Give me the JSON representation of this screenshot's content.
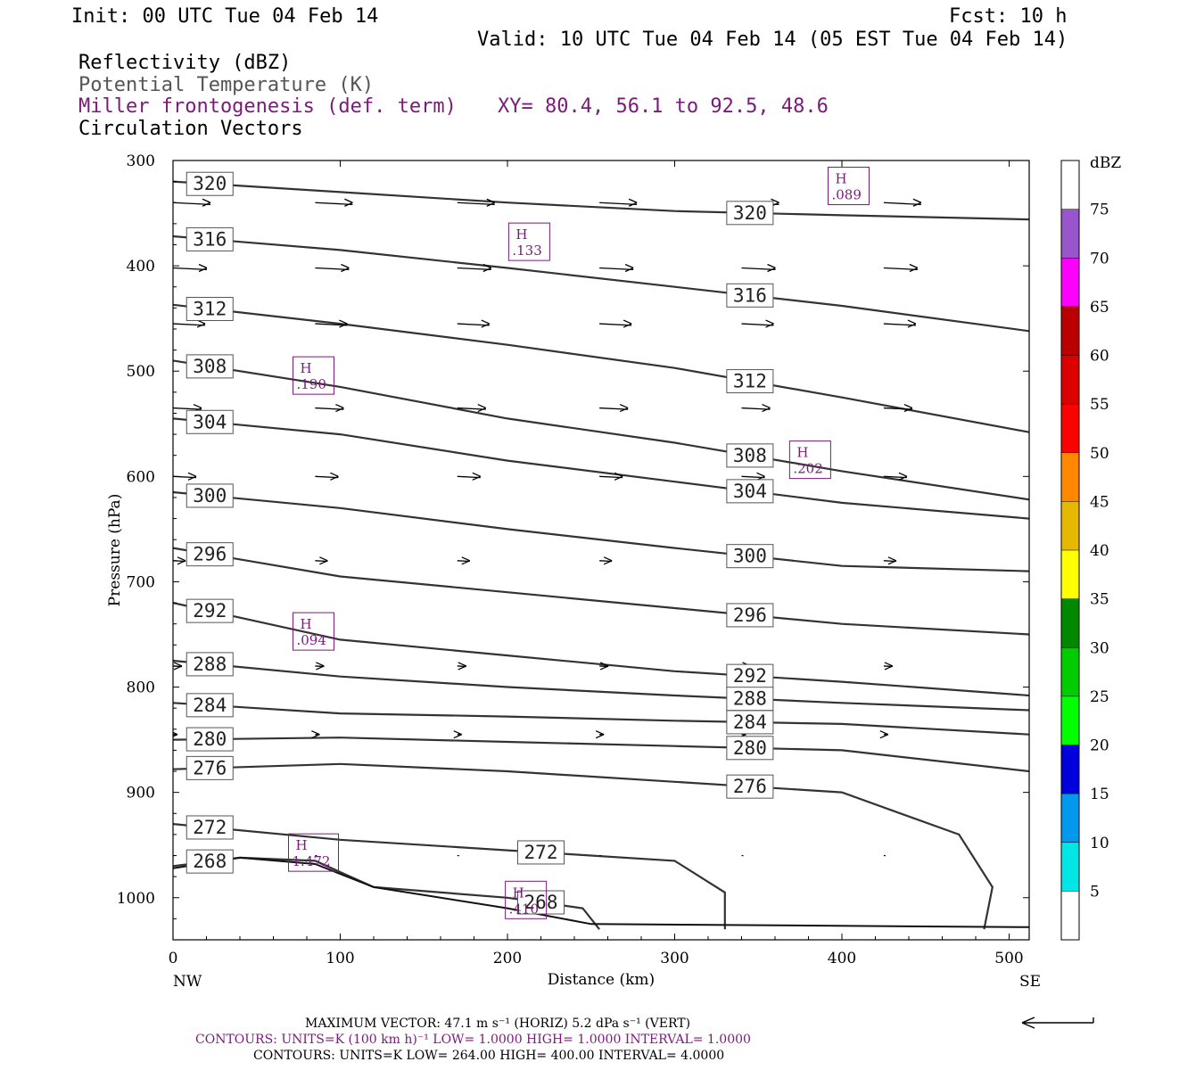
{
  "header": {
    "init": "Init: 00 UTC Tue 04 Feb 14",
    "fcst": "Fcst:   10 h",
    "valid": "Valid: 10 UTC Tue 04 Feb 14 (05 EST Tue 04 Feb 14)"
  },
  "fields": {
    "reflectivity": "Reflectivity (dBZ)",
    "theta": "Potential Temperature (K)",
    "miller": "Miller frontogenesis (def. term)",
    "xy": "XY=  80.4, 56.1 to  92.5, 48.6",
    "vectors": "Circulation Vectors"
  },
  "colors": {
    "purple": "#7a1a7a",
    "contour": "#333333"
  },
  "chart_data": {
    "type": "line",
    "xlabel": "Distance (km)",
    "ylabel": "Pressure (hPa)",
    "xlim": [
      0,
      512
    ],
    "ylim": [
      300,
      1040
    ],
    "y_axis": "pressure, increasing downward",
    "x_ticks": [
      "0",
      "100",
      "200",
      "300",
      "400",
      "500"
    ],
    "y_ticks": [
      "300",
      "400",
      "500",
      "600",
      "700",
      "800",
      "900",
      "1000"
    ],
    "x_ends": [
      "NW",
      "SE"
    ],
    "theta_contours": [
      {
        "label": "320",
        "points": [
          [
            0,
            320
          ],
          [
            100,
            330
          ],
          [
            200,
            340
          ],
          [
            300,
            348
          ],
          [
            400,
            352
          ],
          [
            512,
            356
          ]
        ]
      },
      {
        "label": "316",
        "points": [
          [
            0,
            372
          ],
          [
            100,
            385
          ],
          [
            200,
            402
          ],
          [
            300,
            420
          ],
          [
            400,
            438
          ],
          [
            512,
            462
          ]
        ]
      },
      {
        "label": "312",
        "points": [
          [
            0,
            437
          ],
          [
            100,
            455
          ],
          [
            200,
            475
          ],
          [
            300,
            497
          ],
          [
            400,
            525
          ],
          [
            512,
            558
          ]
        ]
      },
      {
        "label": "308",
        "points": [
          [
            0,
            490
          ],
          [
            100,
            515
          ],
          [
            200,
            545
          ],
          [
            300,
            568
          ],
          [
            400,
            595
          ],
          [
            512,
            622
          ]
        ]
      },
      {
        "label": "304",
        "points": [
          [
            0,
            545
          ],
          [
            100,
            560
          ],
          [
            200,
            585
          ],
          [
            300,
            605
          ],
          [
            400,
            625
          ],
          [
            512,
            640
          ]
        ]
      },
      {
        "label": "300",
        "points": [
          [
            0,
            615
          ],
          [
            100,
            630
          ],
          [
            200,
            650
          ],
          [
            300,
            668
          ],
          [
            400,
            685
          ],
          [
            512,
            690
          ]
        ]
      },
      {
        "label": "296",
        "points": [
          [
            0,
            668
          ],
          [
            100,
            695
          ],
          [
            200,
            710
          ],
          [
            300,
            725
          ],
          [
            400,
            740
          ],
          [
            512,
            750
          ]
        ]
      },
      {
        "label": "292",
        "points": [
          [
            0,
            720
          ],
          [
            100,
            755
          ],
          [
            200,
            770
          ],
          [
            300,
            785
          ],
          [
            400,
            795
          ],
          [
            512,
            808
          ]
        ]
      },
      {
        "label": "288",
        "points": [
          [
            0,
            775
          ],
          [
            100,
            790
          ],
          [
            200,
            800
          ],
          [
            300,
            808
          ],
          [
            400,
            815
          ],
          [
            512,
            822
          ]
        ]
      },
      {
        "label": "284",
        "points": [
          [
            0,
            815
          ],
          [
            100,
            825
          ],
          [
            200,
            828
          ],
          [
            300,
            832
          ],
          [
            400,
            835
          ],
          [
            512,
            845
          ]
        ]
      },
      {
        "label": "280",
        "points": [
          [
            0,
            850
          ],
          [
            100,
            848
          ],
          [
            200,
            852
          ],
          [
            300,
            856
          ],
          [
            400,
            860
          ],
          [
            512,
            880
          ]
        ]
      },
      {
        "label": "276",
        "points": [
          [
            0,
            878
          ],
          [
            100,
            873
          ],
          [
            200,
            880
          ],
          [
            300,
            890
          ],
          [
            400,
            900
          ],
          [
            470,
            940
          ],
          [
            490,
            990
          ],
          [
            485,
            1030
          ]
        ]
      },
      {
        "label": "272",
        "points": [
          [
            0,
            930
          ],
          [
            100,
            945
          ],
          [
            200,
            955
          ],
          [
            300,
            965
          ],
          [
            330,
            995
          ],
          [
            330,
            1030
          ]
        ]
      },
      {
        "label": "268",
        "points": [
          [
            0,
            970
          ],
          [
            40,
            962
          ],
          [
            85,
            965
          ],
          [
            120,
            990
          ],
          [
            200,
            1000
          ],
          [
            245,
            1010
          ],
          [
            255,
            1030
          ]
        ]
      }
    ],
    "terrain_line": [
      [
        0,
        972
      ],
      [
        40,
        962
      ],
      [
        85,
        968
      ],
      [
        120,
        990
      ],
      [
        200,
        1010
      ],
      [
        250,
        1025
      ],
      [
        512,
        1028
      ]
    ],
    "frontogenesis_maxima": [
      {
        "tag": "H",
        "value": ".089",
        "x": 404,
        "y": 325
      },
      {
        "tag": "H",
        "value": ".133",
        "x": 213,
        "y": 378
      },
      {
        "tag": "H",
        "value": ".190",
        "x": 84,
        "y": 505
      },
      {
        "tag": "H",
        "value": ".202",
        "x": 381,
        "y": 585
      },
      {
        "tag": "H",
        "value": ".094",
        "x": 84,
        "y": 748
      },
      {
        "tag": "H",
        "value": "1.472",
        "x": 84,
        "y": 958
      },
      {
        "tag": "H",
        "value": ".410",
        "x": 211,
        "y": 1003
      }
    ],
    "vector_rows": [
      {
        "p": 340,
        "x": [
          0,
          85,
          170,
          255,
          340,
          425,
          512
        ],
        "len": 42
      },
      {
        "p": 402,
        "x": [
          0,
          85,
          170,
          255,
          340,
          425,
          512
        ],
        "len": 38
      },
      {
        "p": 455,
        "x": [
          0,
          85,
          170,
          255,
          340,
          425,
          512
        ],
        "len": 36
      },
      {
        "p": 535,
        "x": [
          0,
          85,
          170,
          255,
          340,
          425,
          512
        ],
        "len": 32
      },
      {
        "p": 600,
        "x": [
          0,
          85,
          170,
          255,
          340,
          425,
          512
        ],
        "len": 26
      },
      {
        "p": 680,
        "x": [
          0,
          85,
          170,
          255,
          340,
          425,
          512
        ],
        "len": 14
      },
      {
        "p": 780,
        "x": [
          0,
          85,
          170,
          255,
          340,
          425,
          512
        ],
        "len": 10
      },
      {
        "p": 845,
        "x": [
          0,
          85,
          170,
          255,
          340,
          425,
          512
        ],
        "len": 5
      },
      {
        "p": 960,
        "x": [
          0,
          85,
          170,
          255,
          340,
          425,
          512
        ],
        "len": 2
      }
    ],
    "colorbar": {
      "unit": "dBZ",
      "ticks": [
        "5",
        "10",
        "15",
        "20",
        "25",
        "30",
        "35",
        "40",
        "45",
        "50",
        "55",
        "60",
        "65",
        "70",
        "75"
      ],
      "colors": [
        "#ffffff",
        "#00e6e6",
        "#0099ee",
        "#0000dd",
        "#00ff00",
        "#00cc00",
        "#008800",
        "#ffff00",
        "#e6b800",
        "#ff8800",
        "#ff0000",
        "#dd0000",
        "#bb0000",
        "#ff00ff",
        "#9955cc",
        "#ffffff"
      ]
    }
  },
  "footer": {
    "max_vector": "MAXIMUM VECTOR:  47.1 m s⁻¹ (HORIZ)          5.2 dPa s⁻¹ (VERT)",
    "contours_purple": "CONTOURS:  UNITS=K (100 km h)⁻¹  LOW=   1.0000       HIGH=  1.0000       INTERVAL=    1.0000",
    "contours_black": "CONTOURS:  UNITS=K  LOW=   264.00       HIGH=   400.00       INTERVAL=    4.0000"
  }
}
